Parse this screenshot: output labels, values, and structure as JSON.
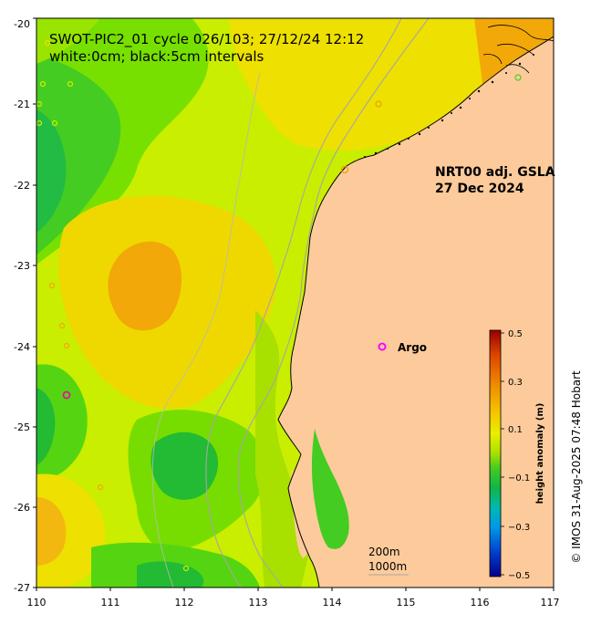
{
  "map": {
    "title_line1": "SWOT-PIC2_01 cycle 026/103; 27/12/24 12:12",
    "title_line2": "white:0cm; black:5cm intervals",
    "product_line1": "NRT00 adj. GSLA",
    "product_line2": "27 Dec 2024",
    "argo_label": "Argo",
    "isobath_200": "200m",
    "isobath_1000": "1000m",
    "copyright": "© IMOS 31-Aug-2025 07:48 Hobart",
    "lon_ticks": [
      "110",
      "111",
      "112",
      "113",
      "114",
      "115",
      "116",
      "117"
    ],
    "lat_ticks": [
      "-20",
      "-21",
      "-22",
      "-23",
      "-24",
      "-25",
      "-26",
      "-27"
    ],
    "lon_range": [
      110,
      117
    ],
    "lat_range": [
      -27,
      -20
    ],
    "land_color": "#FDCB9B",
    "colors": {
      "green_dark": "#22BB22",
      "green": "#55DD11",
      "lime": "#AAEE00",
      "yellow_green": "#CCEE00",
      "yellow": "#EEE000",
      "orange": "#F2A808"
    }
  },
  "colorbar": {
    "title": "height anomaly (m)",
    "labels": [
      "0.5",
      "0.3",
      "0.1",
      "−0.1",
      "−0.3",
      "−0.5"
    ],
    "range": [
      -0.5,
      0.5
    ]
  }
}
